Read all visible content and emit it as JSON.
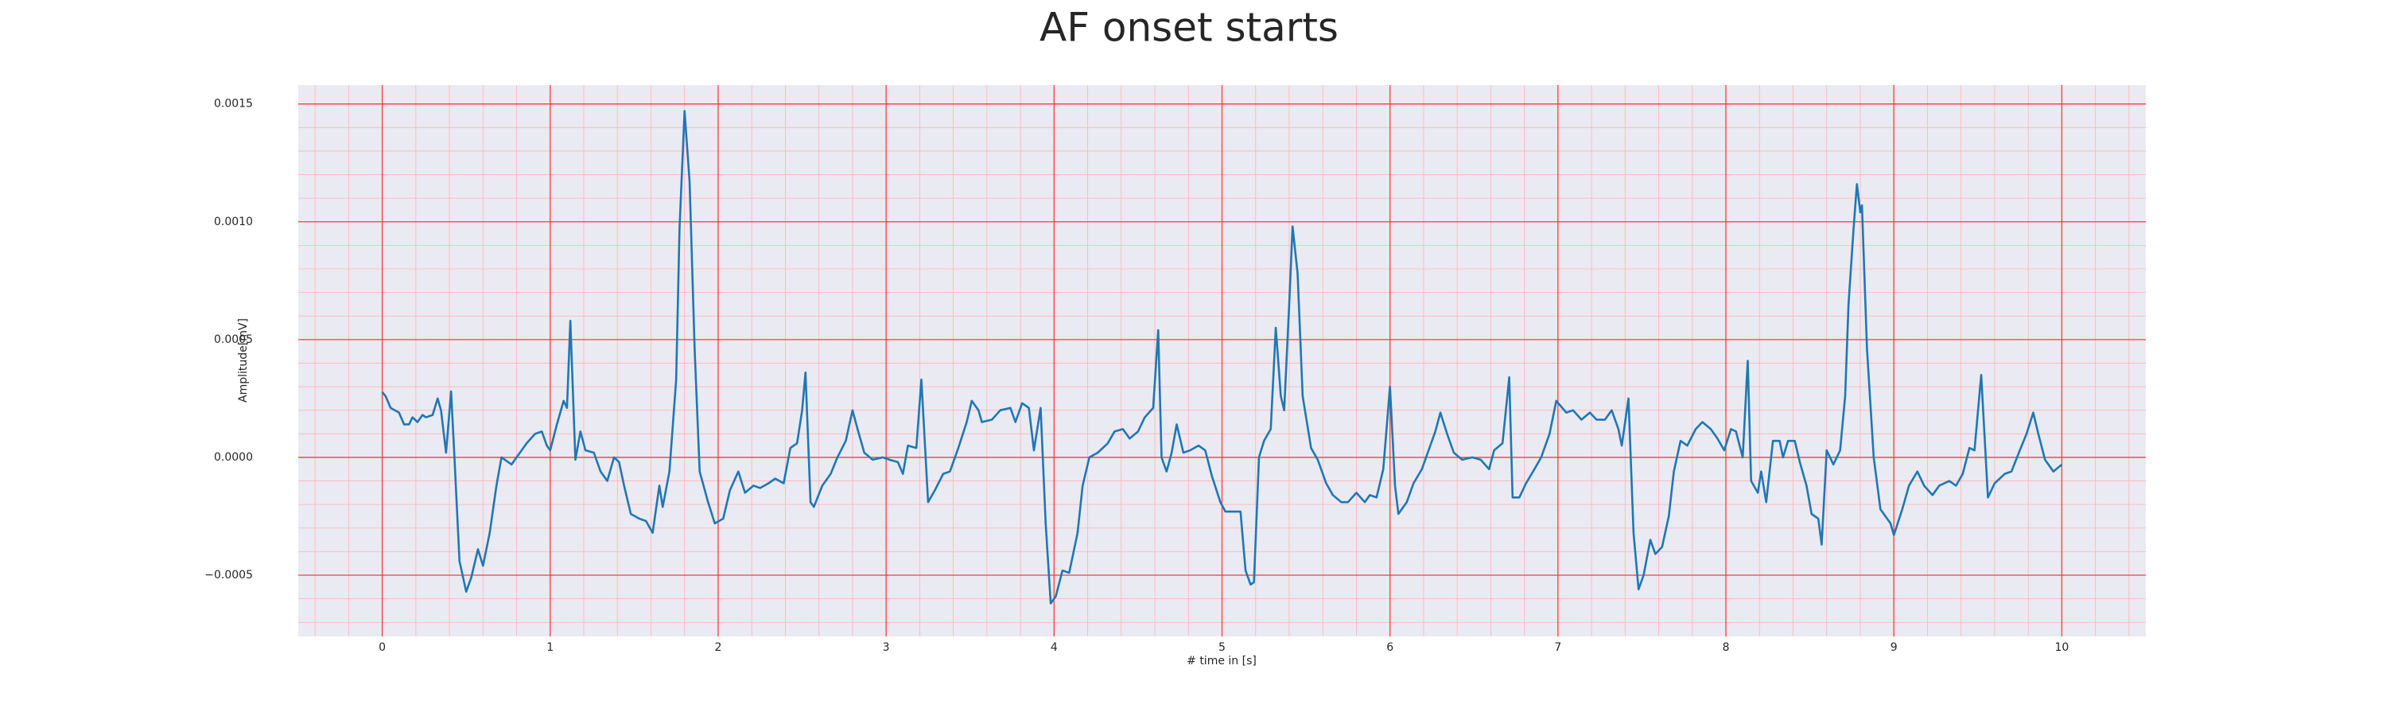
{
  "chart_data": {
    "type": "line",
    "title": "AF onset starts",
    "xlabel": "# time in [s]",
    "ylabel": "Amplitude[mV]",
    "color": "#1f77b4",
    "grid": true,
    "minor_grid": true,
    "xlim": [
      -0.5,
      10.5
    ],
    "ylim": [
      -0.00076,
      0.00158
    ],
    "xticks": [
      0,
      1,
      2,
      3,
      4,
      5,
      6,
      7,
      8,
      9,
      10
    ],
    "yticks": [
      {
        "value": -0.0005,
        "label": "−0.0005"
      },
      {
        "value": 0,
        "label": "0.0000"
      },
      0.0005,
      {
        "value": 0.001,
        "label": "0.0010"
      },
      0.0015
    ],
    "x": [
      0,
      0.02,
      0.05,
      0.1,
      0.13,
      0.16,
      0.18,
      0.21,
      0.24,
      0.26,
      0.3,
      0.33,
      0.35,
      0.38,
      0.41,
      0.43,
      0.46,
      0.5,
      0.53,
      0.57,
      0.6,
      0.64,
      0.68,
      0.71,
      0.77,
      0.8,
      0.86,
      0.91,
      0.95,
      0.98,
      1.0,
      1.04,
      1.08,
      1.1,
      1.12,
      1.15,
      1.18,
      1.21,
      1.26,
      1.3,
      1.34,
      1.38,
      1.41,
      1.44,
      1.48,
      1.53,
      1.57,
      1.61,
      1.65,
      1.67,
      1.71,
      1.75,
      1.77,
      1.8,
      1.83,
      1.86,
      1.89,
      1.94,
      1.98,
      2.03,
      2.07,
      2.12,
      2.16,
      2.21,
      2.25,
      2.3,
      2.34,
      2.39,
      2.43,
      2.47,
      2.5,
      2.52,
      2.55,
      2.57,
      2.62,
      2.67,
      2.71,
      2.76,
      2.8,
      2.83,
      2.87,
      2.92,
      2.98,
      3.02,
      3.07,
      3.1,
      3.13,
      3.18,
      3.21,
      3.25,
      3.29,
      3.34,
      3.38,
      3.43,
      3.48,
      3.51,
      3.55,
      3.57,
      3.63,
      3.68,
      3.74,
      3.77,
      3.81,
      3.85,
      3.88,
      3.92,
      3.95,
      3.98,
      4.01,
      4.05,
      4.09,
      4.14,
      4.17,
      4.21,
      4.26,
      4.32,
      4.36,
      4.41,
      4.45,
      4.5,
      4.54,
      4.59,
      4.62,
      4.64,
      4.67,
      4.7,
      4.73,
      4.77,
      4.81,
      4.86,
      4.9,
      4.94,
      4.99,
      5.02,
      5.08,
      5.11,
      5.14,
      5.17,
      5.19,
      5.22,
      5.25,
      5.29,
      5.32,
      5.35,
      5.37,
      5.4,
      5.42,
      5.45,
      5.48,
      5.53,
      5.57,
      5.62,
      5.66,
      5.71,
      5.75,
      5.8,
      5.85,
      5.88,
      5.92,
      5.96,
      6.0,
      6.03,
      6.05,
      6.1,
      6.14,
      6.19,
      6.23,
      6.27,
      6.3,
      6.34,
      6.38,
      6.43,
      6.49,
      6.54,
      6.59,
      6.62,
      6.67,
      6.71,
      6.73,
      6.77,
      6.81,
      6.86,
      6.9,
      6.95,
      6.99,
      7.05,
      7.09,
      7.14,
      7.19,
      7.23,
      7.28,
      7.32,
      7.36,
      7.38,
      7.42,
      7.45,
      7.48,
      7.51,
      7.55,
      7.58,
      7.62,
      7.66,
      7.69,
      7.73,
      7.77,
      7.82,
      7.86,
      7.91,
      7.95,
      7.99,
      8.03,
      8.06,
      8.1,
      8.13,
      8.15,
      8.19,
      8.21,
      8.24,
      8.28,
      8.32,
      8.34,
      8.37,
      8.41,
      8.44,
      8.48,
      8.51,
      8.55,
      8.57,
      8.6,
      8.64,
      8.68,
      8.71,
      8.73,
      8.76,
      8.78,
      8.8,
      8.81,
      8.84,
      8.88,
      8.92,
      8.98,
      9.0,
      9.05,
      9.09,
      9.14,
      9.18,
      9.23,
      9.27,
      9.33,
      9.37,
      9.41,
      9.45,
      9.48,
      9.52,
      9.56,
      9.6,
      9.66,
      9.7,
      9.75,
      9.79,
      9.83,
      9.86,
      9.9,
      9.95,
      10.0
    ],
    "values": [
      0.000277,
      0.00026,
      0.00021,
      0.00019,
      0.00014,
      0.00014,
      0.00017,
      0.00015,
      0.00018,
      0.00017,
      0.00018,
      0.00025,
      0.0002,
      2e-05,
      0.00028,
      0.0,
      -0.00044,
      -0.00057,
      -0.00051,
      -0.00039,
      -0.00046,
      -0.00032,
      -0.00012,
      0.0,
      -3e-05,
      0.0,
      6e-05,
      0.0001,
      0.00011,
      5e-05,
      3e-05,
      0.00014,
      0.00024,
      0.00021,
      0.00058,
      -1e-05,
      0.00011,
      3e-05,
      2e-05,
      -6e-05,
      -0.0001,
      0.0,
      -2e-05,
      -0.00012,
      -0.00024,
      -0.00026,
      -0.00027,
      -0.00032,
      -0.00012,
      -0.00021,
      -6e-05,
      0.00033,
      0.00097,
      0.00147,
      0.00117,
      0.00046,
      -6e-05,
      -0.00019,
      -0.00028,
      -0.00026,
      -0.00014,
      -6e-05,
      -0.00015,
      -0.00012,
      -0.00013,
      -0.00011,
      -9e-05,
      -0.00011,
      4e-05,
      6e-05,
      0.0002,
      0.00036,
      -0.00019,
      -0.00021,
      -0.00012,
      -7e-05,
      0.0,
      7e-05,
      0.0002,
      0.00012,
      2e-05,
      -1e-05,
      0.0,
      -1e-05,
      -2e-05,
      -7e-05,
      5e-05,
      4e-05,
      0.00033,
      -0.00019,
      -0.00014,
      -7e-05,
      -6e-05,
      4e-05,
      0.00015,
      0.00024,
      0.0002,
      0.00015,
      0.00016,
      0.0002,
      0.00021,
      0.00015,
      0.00023,
      0.00021,
      3e-05,
      0.00021,
      -0.00028,
      -0.00062,
      -0.00059,
      -0.00048,
      -0.00049,
      -0.00032,
      -0.00012,
      0.0,
      2e-05,
      6e-05,
      0.00011,
      0.00012,
      8e-05,
      0.00011,
      0.00017,
      0.00021,
      0.00054,
      0.0,
      -6e-05,
      2e-05,
      0.00014,
      2e-05,
      3e-05,
      5e-05,
      3e-05,
      -8e-05,
      -0.00019,
      -0.00023,
      -0.00023,
      -0.00023,
      -0.00048,
      -0.00054,
      -0.00053,
      0.0,
      7e-05,
      0.00012,
      0.00055,
      0.00026,
      0.0002,
      0.00065,
      0.00098,
      0.00078,
      0.00026,
      4e-05,
      -1e-05,
      -0.00011,
      -0.00016,
      -0.00019,
      -0.00019,
      -0.00015,
      -0.00019,
      -0.00016,
      -0.00017,
      -5e-05,
      0.0003,
      -0.00012,
      -0.00024,
      -0.00019,
      -0.00011,
      -5e-05,
      3e-05,
      0.00011,
      0.00019,
      0.0001,
      2e-05,
      -1e-05,
      0.0,
      -1e-05,
      -5e-05,
      3e-05,
      6e-05,
      0.00034,
      -0.00017,
      -0.00017,
      -0.00011,
      -5e-05,
      0.0,
      0.0001,
      0.00024,
      0.00019,
      0.0002,
      0.00016,
      0.00019,
      0.00016,
      0.00016,
      0.0002,
      0.00012,
      5e-05,
      0.00025,
      -0.00032,
      -0.00056,
      -0.0005,
      -0.00035,
      -0.00041,
      -0.00038,
      -0.00025,
      -6e-05,
      7e-05,
      5e-05,
      0.00012,
      0.00015,
      0.00012,
      8e-05,
      3e-05,
      0.00012,
      0.00011,
      0.0,
      0.00041,
      -0.0001,
      -0.00015,
      -6e-05,
      -0.00019,
      7e-05,
      7e-05,
      0.0,
      7e-05,
      7e-05,
      -2e-05,
      -0.00012,
      -0.00024,
      -0.00026,
      -0.00037,
      3e-05,
      -3e-05,
      3e-05,
      0.00026,
      0.00065,
      0.00097,
      0.00116,
      0.00104,
      0.00107,
      0.00046,
      0.0,
      -0.00022,
      -0.00028,
      -0.00033,
      -0.00022,
      -0.00012,
      -6e-05,
      -0.00012,
      -0.00016,
      -0.00012,
      -0.0001,
      -0.00012,
      -7e-05,
      4e-05,
      3e-05,
      0.00035,
      -0.00017,
      -0.00011,
      -7e-05,
      -6e-05,
      3e-05,
      0.0001,
      0.00019,
      0.0001,
      -1e-05,
      -6e-05,
      -3e-05
    ]
  }
}
